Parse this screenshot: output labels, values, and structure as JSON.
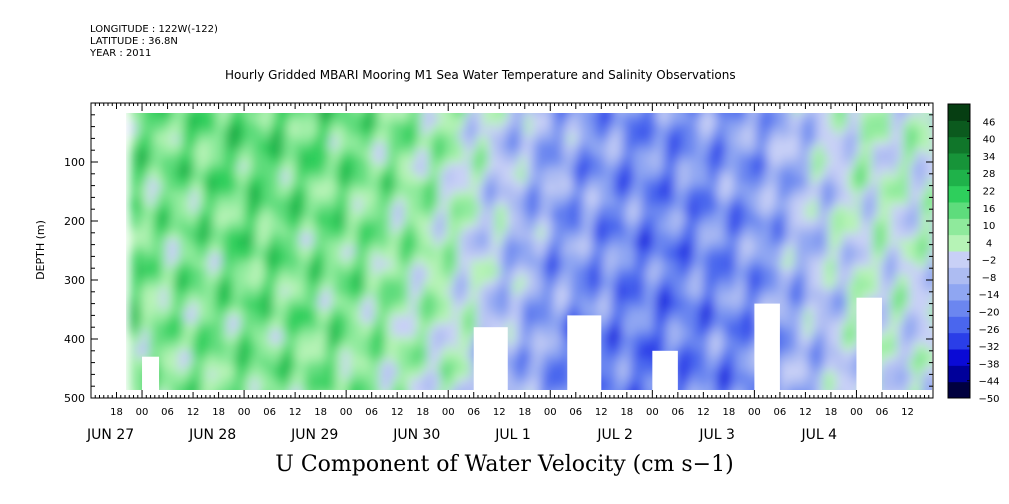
{
  "header": {
    "longitude": "LONGITUDE : 122W(-122)",
    "latitude": "LATITUDE : 36.8N",
    "year": "YEAR : 2011"
  },
  "title": "Hourly Gridded MBARI Mooring M1 Sea Water Temperature and Salinity Observations",
  "bottom_title": "U Component of Water Velocity (cm s−1)",
  "chart_data": {
    "type": "heatmap",
    "title": "Hourly Gridded MBARI Mooring M1 Sea Water Temperature and Salinity Observations",
    "xlabel": "",
    "ylabel": "DEPTH (m)",
    "colorbar_label": "U Component of Water Velocity (cm s−1)",
    "x_range_hours": [
      "2011-06-26T12:00",
      "2011-07-04T18:00"
    ],
    "data_x_range": [
      "2011-06-27T00:00",
      "2011-07-04T18:00"
    ],
    "ylim": [
      500,
      0
    ],
    "data_depth_range": [
      20,
      490
    ],
    "y_ticks": [
      100,
      200,
      300,
      400,
      500
    ],
    "x_hour_ticks": [
      "18",
      "00",
      "06",
      "12",
      "18",
      "00",
      "06",
      "12",
      "18",
      "00",
      "06",
      "12",
      "18",
      "00",
      "06",
      "12",
      "18",
      "00",
      "06",
      "12",
      "18",
      "00",
      "06",
      "12",
      "18",
      "00",
      "06",
      "12",
      "18",
      "00",
      "06",
      "12"
    ],
    "x_day_labels": [
      "JUN 27",
      "JUN 28",
      "JUN 29",
      "JUN 30",
      "JUL  1",
      "JUL  2",
      "JUL  3",
      "JUL  4"
    ],
    "colorbar_ticks": [
      46,
      40,
      34,
      28,
      22,
      16,
      10,
      4,
      -2,
      -8,
      -14,
      -20,
      -26,
      -32,
      -38,
      -44,
      -50
    ],
    "colorbar_range": [
      -50,
      52
    ],
    "colorbar_colors": [
      "#00003f",
      "#00009a",
      "#0a0ad6",
      "#2a3ee8",
      "#4a66ee",
      "#6b86f0",
      "#8fa6f2",
      "#adbcf2",
      "#c8d0f6",
      "#b6f3b6",
      "#8fea9c",
      "#5edc7c",
      "#2ecf5c",
      "#1fb24a",
      "#179439",
      "#10762a",
      "#0b5a1e",
      "#063e12"
    ],
    "daily_mean_u_surface_to_bottom": [
      {
        "period": "JUN 27",
        "u": 12
      },
      {
        "period": "JUN 28",
        "u": 16
      },
      {
        "period": "JUN 29",
        "u": 14
      },
      {
        "period": "JUN 30",
        "u": 6
      },
      {
        "period": "JUL  1",
        "u": -12
      },
      {
        "period": "JUL  2",
        "u": -18
      },
      {
        "period": "JUL  3",
        "u": -14
      },
      {
        "period": "JUL  4",
        "u": 2
      }
    ],
    "missing_data": [
      {
        "t_start": "2011-06-27T00:00",
        "t_end": "2011-06-27T04:00",
        "depth_from": 430,
        "depth_to": 490
      },
      {
        "t_start": "2011-06-30T06:00",
        "t_end": "2011-06-30T14:00",
        "depth_from": 380,
        "depth_to": 490
      },
      {
        "t_start": "2011-07-01T04:00",
        "t_end": "2011-07-01T12:00",
        "depth_from": 360,
        "depth_to": 490
      },
      {
        "t_start": "2011-07-02T00:00",
        "t_end": "2011-07-02T06:00",
        "depth_from": 420,
        "depth_to": 490
      },
      {
        "t_start": "2011-07-03T00:00",
        "t_end": "2011-07-03T06:00",
        "depth_from": 340,
        "depth_to": 490
      },
      {
        "t_start": "2011-07-04T00:00",
        "t_end": "2011-07-04T06:00",
        "depth_from": 330,
        "depth_to": 490
      }
    ]
  }
}
